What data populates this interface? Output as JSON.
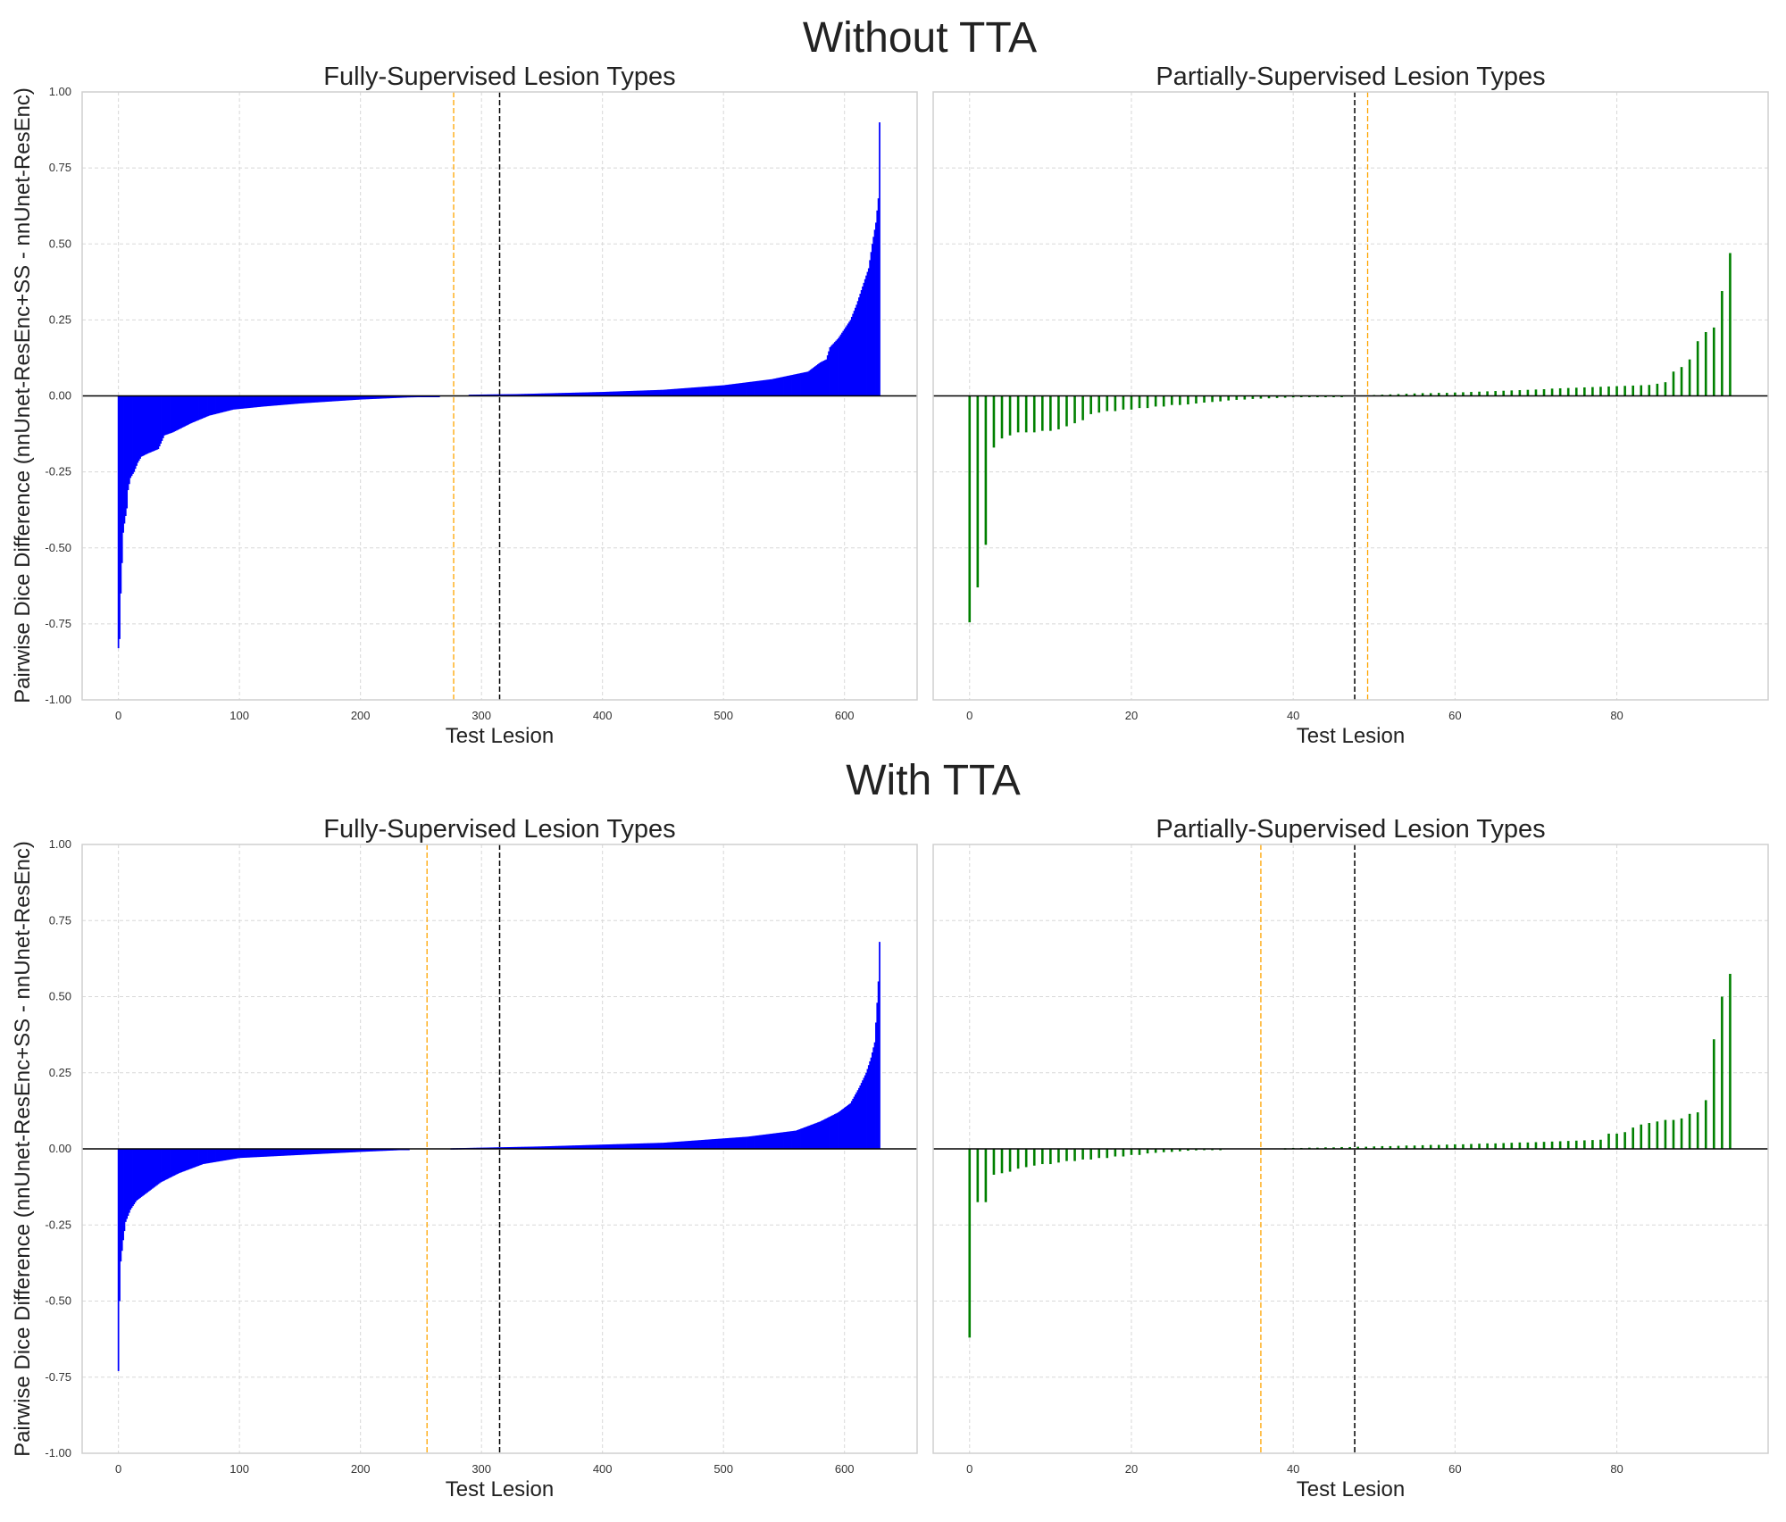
{
  "figure": {
    "ylabel": "Pairwise Dice Difference (nnUnet-ResEnc+SS - nnUnet-ResEnc)",
    "colors": {
      "fully": "#0000ff",
      "partial": "#008000",
      "orange_line": "#ffa500",
      "black_line": "#000000"
    }
  },
  "chart_data": [
    {
      "type": "bar",
      "suptitle": "Without TTA",
      "title": "Fully-Supervised Lesion Types",
      "xlabel": "Test Lesion",
      "n": 630,
      "xlim": [
        -30,
        660
      ],
      "ylim": [
        -1.0,
        1.0
      ],
      "xticks": [
        "0",
        "100",
        "200",
        "300",
        "400",
        "500",
        "600"
      ],
      "yticks": [
        "-1.00",
        "-0.75",
        "-0.50",
        "-0.25",
        "0.00",
        "0.25",
        "0.50",
        "0.75",
        "1.00"
      ],
      "vlines": {
        "orange": 277,
        "black": 315
      },
      "sorted_value_knots": [
        [
          0,
          -0.83
        ],
        [
          1,
          -0.8
        ],
        [
          2,
          -0.65
        ],
        [
          3,
          -0.55
        ],
        [
          4,
          -0.45
        ],
        [
          5,
          -0.42
        ],
        [
          7,
          -0.37
        ],
        [
          8,
          -0.31
        ],
        [
          10,
          -0.27
        ],
        [
          13,
          -0.25
        ],
        [
          16,
          -0.22
        ],
        [
          19,
          -0.2
        ],
        [
          24,
          -0.19
        ],
        [
          33,
          -0.175
        ],
        [
          38,
          -0.13
        ],
        [
          45,
          -0.12
        ],
        [
          60,
          -0.09
        ],
        [
          75,
          -0.065
        ],
        [
          95,
          -0.045
        ],
        [
          120,
          -0.035
        ],
        [
          150,
          -0.025
        ],
        [
          200,
          -0.012
        ],
        [
          240,
          -0.005
        ],
        [
          265,
          -0.003
        ],
        [
          290,
          0.004
        ],
        [
          330,
          0.006
        ],
        [
          400,
          0.013
        ],
        [
          450,
          0.02
        ],
        [
          500,
          0.035
        ],
        [
          540,
          0.055
        ],
        [
          570,
          0.08
        ],
        [
          580,
          0.11
        ],
        [
          585,
          0.12
        ],
        [
          588,
          0.16
        ],
        [
          595,
          0.19
        ],
        [
          600,
          0.22
        ],
        [
          605,
          0.25
        ],
        [
          610,
          0.3
        ],
        [
          615,
          0.36
        ],
        [
          620,
          0.42
        ],
        [
          623,
          0.5
        ],
        [
          626,
          0.57
        ],
        [
          628,
          0.65
        ],
        [
          629,
          0.9
        ]
      ]
    },
    {
      "type": "bar",
      "title": "Partially-Supervised Lesion Types",
      "xlabel": "Test Lesion",
      "n": 95,
      "xlim": [
        -4.5,
        98.7
      ],
      "ylim": [
        -1.0,
        1.0
      ],
      "xticks": [
        "0",
        "20",
        "40",
        "60",
        "80"
      ],
      "vlines": {
        "orange": 49.2,
        "black": 47.6
      },
      "values": [
        -0.745,
        -0.63,
        -0.49,
        -0.17,
        -0.14,
        -0.13,
        -0.12,
        -0.12,
        -0.12,
        -0.115,
        -0.115,
        -0.11,
        -0.1,
        -0.09,
        -0.08,
        -0.06,
        -0.055,
        -0.05,
        -0.05,
        -0.045,
        -0.045,
        -0.04,
        -0.04,
        -0.035,
        -0.035,
        -0.03,
        -0.03,
        -0.028,
        -0.025,
        -0.022,
        -0.02,
        -0.018,
        -0.015,
        -0.013,
        -0.012,
        -0.01,
        -0.009,
        -0.008,
        -0.007,
        -0.006,
        -0.005,
        -0.004,
        -0.003,
        -0.003,
        -0.002,
        -0.002,
        -0.001,
        0,
        0,
        0,
        0.003,
        0.004,
        0.005,
        0.006,
        0.007,
        0.008,
        0.009,
        0.009,
        0.01,
        0.01,
        0.011,
        0.012,
        0.013,
        0.014,
        0.015,
        0.016,
        0.017,
        0.018,
        0.019,
        0.02,
        0.021,
        0.022,
        0.024,
        0.025,
        0.026,
        0.027,
        0.028,
        0.029,
        0.03,
        0.031,
        0.032,
        0.033,
        0.034,
        0.035,
        0.036,
        0.04,
        0.045,
        0.08,
        0.095,
        0.12,
        0.18,
        0.21,
        0.225,
        0.345,
        0.47
      ]
    },
    {
      "type": "bar",
      "suptitle": "With TTA",
      "title": "Fully-Supervised Lesion Types",
      "xlabel": "Test Lesion",
      "n": 630,
      "xlim": [
        -30,
        660
      ],
      "ylim": [
        -1.0,
        1.0
      ],
      "xticks": [
        "0",
        "100",
        "200",
        "300",
        "400",
        "500",
        "600"
      ],
      "yticks": [
        "-1.00",
        "-0.75",
        "-0.50",
        "-0.25",
        "0.00",
        "0.25",
        "0.50",
        "0.75",
        "1.00"
      ],
      "vlines": {
        "orange": 255,
        "black": 315
      },
      "sorted_value_knots": [
        [
          0,
          -0.73
        ],
        [
          1,
          -0.5
        ],
        [
          2,
          -0.37
        ],
        [
          4,
          -0.3
        ],
        [
          6,
          -0.24
        ],
        [
          10,
          -0.2
        ],
        [
          15,
          -0.17
        ],
        [
          25,
          -0.14
        ],
        [
          35,
          -0.11
        ],
        [
          50,
          -0.08
        ],
        [
          70,
          -0.05
        ],
        [
          100,
          -0.03
        ],
        [
          150,
          -0.02
        ],
        [
          200,
          -0.01
        ],
        [
          240,
          -0.003
        ],
        [
          275,
          0.002
        ],
        [
          350,
          0.008
        ],
        [
          450,
          0.02
        ],
        [
          520,
          0.04
        ],
        [
          560,
          0.06
        ],
        [
          580,
          0.09
        ],
        [
          595,
          0.12
        ],
        [
          605,
          0.15
        ],
        [
          612,
          0.2
        ],
        [
          618,
          0.25
        ],
        [
          622,
          0.3
        ],
        [
          625,
          0.35
        ],
        [
          627,
          0.48
        ],
        [
          628,
          0.55
        ],
        [
          629,
          0.68
        ]
      ]
    },
    {
      "type": "bar",
      "title": "Partially-Supervised Lesion Types",
      "xlabel": "Test Lesion",
      "n": 95,
      "xlim": [
        -4.5,
        98.7
      ],
      "ylim": [
        -1.0,
        1.0
      ],
      "xticks": [
        "0",
        "20",
        "40",
        "60",
        "80"
      ],
      "vlines": {
        "orange": 36,
        "black": 47.6
      },
      "values": [
        -0.62,
        -0.175,
        -0.175,
        -0.085,
        -0.08,
        -0.075,
        -0.065,
        -0.06,
        -0.055,
        -0.05,
        -0.05,
        -0.045,
        -0.04,
        -0.04,
        -0.035,
        -0.035,
        -0.03,
        -0.03,
        -0.025,
        -0.025,
        -0.02,
        -0.02,
        -0.015,
        -0.013,
        -0.011,
        -0.01,
        -0.008,
        -0.006,
        -0.005,
        -0.004,
        -0.003,
        -0.002,
        0,
        0,
        0,
        0,
        0,
        0,
        0,
        0.002,
        0.003,
        0.003,
        0.004,
        0.004,
        0.005,
        0.005,
        0.006,
        0.006,
        0.007,
        0.007,
        0.008,
        0.009,
        0.009,
        0.01,
        0.011,
        0.011,
        0.012,
        0.013,
        0.013,
        0.014,
        0.015,
        0.015,
        0.016,
        0.017,
        0.018,
        0.018,
        0.019,
        0.02,
        0.021,
        0.021,
        0.022,
        0.023,
        0.024,
        0.025,
        0.026,
        0.027,
        0.028,
        0.029,
        0.03,
        0.05,
        0.05,
        0.055,
        0.07,
        0.08,
        0.085,
        0.09,
        0.095,
        0.095,
        0.1,
        0.115,
        0.12,
        0.16,
        0.36,
        0.5,
        0.575
      ]
    }
  ]
}
